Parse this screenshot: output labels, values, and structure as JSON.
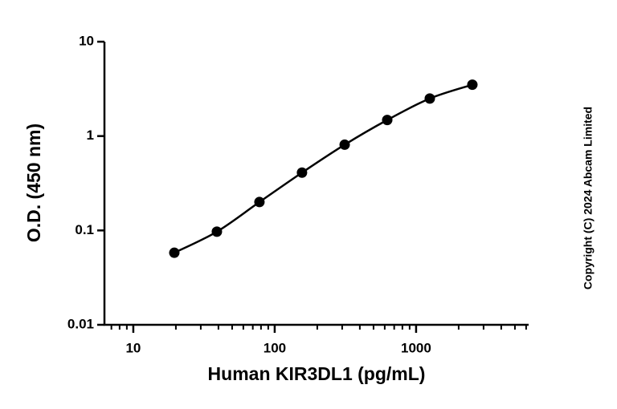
{
  "chart_data": {
    "type": "line",
    "x_label": "Human KIR3DL1 (pg/mL)",
    "y_label": "O.D. (450 nm)",
    "annotation": "Copyright (C) 2024 Abcam Limited",
    "x": [
      19.5,
      39,
      78,
      156,
      312.5,
      625,
      1250,
      2500
    ],
    "series": [
      {
        "color": "#000000",
        "values": [
          0.058,
          0.097,
          0.2,
          0.41,
          0.81,
          1.48,
          2.5,
          3.5
        ]
      }
    ],
    "x_log": true,
    "y_log": true,
    "xlim": [
      6.25,
      6250
    ],
    "xticks": [
      10,
      100,
      1000
    ],
    "ylim": [
      0.01,
      10
    ],
    "yticks": [
      0.01,
      0.1,
      1,
      10
    ],
    "markers": true,
    "grid": false
  }
}
